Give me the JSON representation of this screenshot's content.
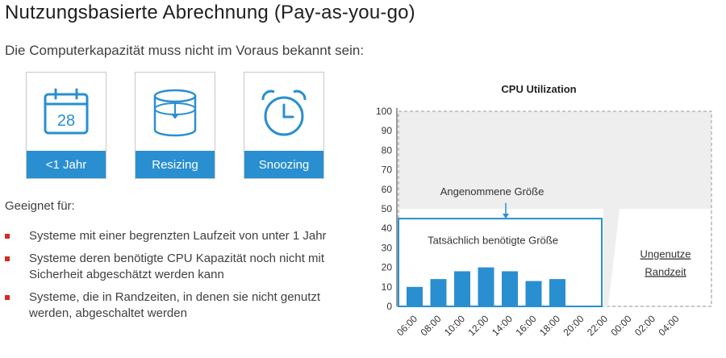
{
  "slide": {
    "title": "Nutzungsbasierte Abrechnung (Pay-as-you-go)",
    "subtitle": "Die Computerkapazität muss nicht im Voraus bekannt sein:",
    "cards": [
      {
        "label": "<1 Jahr",
        "icon": "calendar-icon",
        "icon_text": "28"
      },
      {
        "label": "Resizing",
        "icon": "resize-cylinder-icon"
      },
      {
        "label": "Snoozing",
        "icon": "alarm-clock-icon"
      }
    ],
    "suitable_label": "Geeignet für:",
    "bullets": [
      "Systeme mit einer begrenzten Laufzeit von unter 1 Jahr",
      "Systeme deren benötigte CPU Kapazität noch nicht mit Sicherheit abgeschätzt werden kann",
      "Systeme, die in Randzeiten, in denen sie nicht genutzt werden, abgeschaltet werden"
    ],
    "colors": {
      "accent": "#2a8fd0",
      "bullet": "#d42a1f",
      "bar": "#2a8fd0"
    }
  },
  "chart_data": {
    "type": "bar",
    "title": "CPU Utilization",
    "categories": [
      "06:00",
      "08:00",
      "10:00",
      "12:00",
      "14:00",
      "16:00",
      "18:00",
      "20:00",
      "22:00",
      "00:00",
      "02:00",
      "04:00"
    ],
    "values": [
      10,
      14,
      18,
      20,
      18,
      13,
      14,
      null,
      null,
      null,
      null,
      null
    ],
    "ylim": [
      0,
      100
    ],
    "yticks": [
      0,
      10,
      20,
      30,
      40,
      50,
      60,
      70,
      80,
      90,
      100
    ],
    "annotations": {
      "assumed_label": "Angenommene Größe",
      "actual_label": "Tatsächlich benötigte Größe",
      "unused_label_1": "Ungenutze",
      "unused_label_2": "Randzeit",
      "assumed_level": 100,
      "actual_level": 45
    }
  }
}
